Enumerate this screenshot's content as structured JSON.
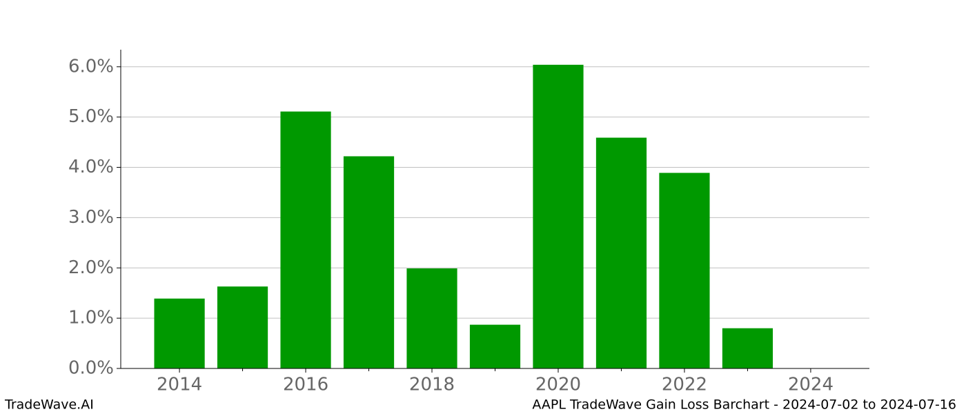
{
  "chart_data": {
    "type": "bar",
    "x": [
      2014,
      2015,
      2016,
      2017,
      2018,
      2019,
      2020,
      2021,
      2022,
      2023
    ],
    "values": [
      1.39,
      1.63,
      5.11,
      4.22,
      1.99,
      0.87,
      6.04,
      4.59,
      3.89,
      0.8
    ],
    "color": "#009900",
    "bar_width": 0.8,
    "xlim": [
      2013.07,
      2024.93
    ],
    "xticks": [
      2014,
      2016,
      2018,
      2020,
      2022,
      2024
    ],
    "xminorticks": [
      2015,
      2017,
      2019,
      2021,
      2023
    ],
    "ylim": [
      0,
      6.34
    ],
    "yticks": [
      {
        "value": 0,
        "label": "0.0%"
      },
      {
        "value": 1,
        "label": "1.0%"
      },
      {
        "value": 2,
        "label": "2.0%"
      },
      {
        "value": 3,
        "label": "3.0%"
      },
      {
        "value": 4,
        "label": "4.0%"
      },
      {
        "value": 5,
        "label": "5.0%"
      },
      {
        "value": 6,
        "label": "6.0%"
      }
    ],
    "grid": true,
    "footer_left": "TradeWave.AI",
    "footer_right": "AAPL TradeWave Gain Loss Barchart - 2024-07-02 to 2024-07-16"
  }
}
